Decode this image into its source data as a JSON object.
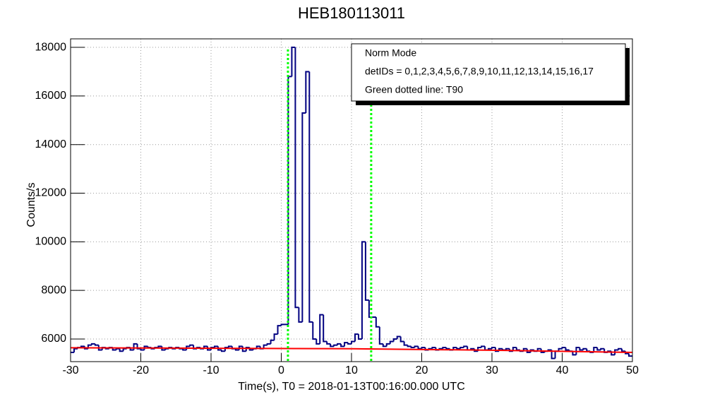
{
  "chart_data": {
    "type": "histogram",
    "title": "HEB180113011",
    "xlabel": "Time(s), T0 = 2018-01-13T00:16:00.000 UTC",
    "ylabel": "Counts/s",
    "bins": [
      -30,
      -29.5,
      -29,
      -28.5,
      -28,
      -27.5,
      -27,
      -26.5,
      -26,
      -25.5,
      -25,
      -24.5,
      -24,
      -23.5,
      -23,
      -22.5,
      -22,
      -21.5,
      -21,
      -20.5,
      -20,
      -19.5,
      -19,
      -18.5,
      -18,
      -17.5,
      -17,
      -16.5,
      -16,
      -15.5,
      -15,
      -14.5,
      -14,
      -13.5,
      -13,
      -12.5,
      -12,
      -11.5,
      -11,
      -10.5,
      -10,
      -9.5,
      -9,
      -8.5,
      -8,
      -7.5,
      -7,
      -6.5,
      -6,
      -5.5,
      -5,
      -4.5,
      -4,
      -3.5,
      -3,
      -2.5,
      -2,
      -1.5,
      -1,
      -0.5,
      0,
      0.5,
      1,
      1.5,
      2,
      2.5,
      3,
      3.5,
      4,
      4.5,
      5,
      5.5,
      6,
      6.5,
      7,
      7.5,
      8,
      8.5,
      9,
      9.5,
      10,
      10.5,
      11,
      11.5,
      12,
      12.5,
      13,
      13.5,
      14,
      14.5,
      15,
      15.5,
      16,
      16.5,
      17,
      17.5,
      18,
      18.5,
      19,
      19.5,
      20,
      20.5,
      21,
      21.5,
      22,
      22.5,
      23,
      23.5,
      24,
      24.5,
      25,
      25.5,
      26,
      26.5,
      27,
      27.5,
      28,
      28.5,
      29,
      29.5,
      30,
      30.5,
      31,
      31.5,
      32,
      32.5,
      33,
      33.5,
      34,
      34.5,
      35,
      35.5,
      36,
      36.5,
      37,
      37.5,
      38,
      38.5,
      39,
      39.5,
      40,
      40.5,
      41,
      41.5,
      42,
      42.5,
      43,
      43.5,
      44,
      44.5,
      45,
      45.5,
      46,
      46.5,
      47,
      47.5,
      48,
      48.5,
      49,
      49.5,
      50
    ],
    "counts": [
      5450,
      5600,
      5650,
      5700,
      5600,
      5750,
      5800,
      5750,
      5550,
      5650,
      5600,
      5650,
      5550,
      5600,
      5500,
      5600,
      5650,
      5550,
      5800,
      5600,
      5550,
      5700,
      5650,
      5600,
      5650,
      5700,
      5550,
      5600,
      5650,
      5600,
      5650,
      5600,
      5550,
      5700,
      5750,
      5600,
      5650,
      5600,
      5700,
      5550,
      5650,
      5700,
      5550,
      5500,
      5650,
      5700,
      5600,
      5550,
      5700,
      5500,
      5650,
      5550,
      5600,
      5700,
      5600,
      5750,
      5800,
      5950,
      6200,
      6550,
      6600,
      6600,
      16800,
      18000,
      7300,
      6700,
      15300,
      17000,
      6700,
      6000,
      5800,
      7000,
      5900,
      5800,
      5700,
      5750,
      5800,
      5700,
      5850,
      5800,
      5900,
      6200,
      6000,
      10000,
      7600,
      6900,
      6900,
      6500,
      5800,
      5700,
      5800,
      5900,
      6000,
      6100,
      5900,
      5750,
      5700,
      5650,
      5700,
      5600,
      5650,
      5550,
      5600,
      5650,
      5550,
      5600,
      5650,
      5600,
      5550,
      5650,
      5600,
      5650,
      5700,
      5550,
      5600,
      5500,
      5650,
      5700,
      5550,
      5600,
      5650,
      5500,
      5600,
      5550,
      5600,
      5500,
      5650,
      5550,
      5500,
      5600,
      5450,
      5550,
      5500,
      5600,
      5450,
      5500,
      5550,
      5200,
      5500,
      5600,
      5650,
      5550,
      5500,
      5350,
      5650,
      5550,
      5600,
      5500,
      5450,
      5650,
      5550,
      5600,
      5450,
      5500,
      5350,
      5550,
      5600,
      5500,
      5400,
      5300
    ],
    "color": "#000080",
    "fit": {
      "color": "#ff0000",
      "x": [
        -30,
        -10,
        10,
        30,
        50
      ],
      "values": [
        5640,
        5620,
        5600,
        5540,
        5450
      ]
    },
    "t90": {
      "color": "#00ff00",
      "x": [
        0.95,
        12.8
      ]
    },
    "legend_lines": [
      "Norm Mode",
      "detIDs = 0,1,2,3,4,5,6,7,8,9,10,11,12,13,14,15,16,17",
      "Green dotted line: T90"
    ],
    "xlim": [
      -30,
      50
    ],
    "xticks": [
      -30,
      -20,
      -10,
      0,
      10,
      20,
      30,
      40,
      50
    ],
    "ylim": [
      5070,
      18350
    ],
    "yticks": [
      6000,
      8000,
      10000,
      12000,
      14000,
      16000,
      18000
    ],
    "grid": true
  }
}
